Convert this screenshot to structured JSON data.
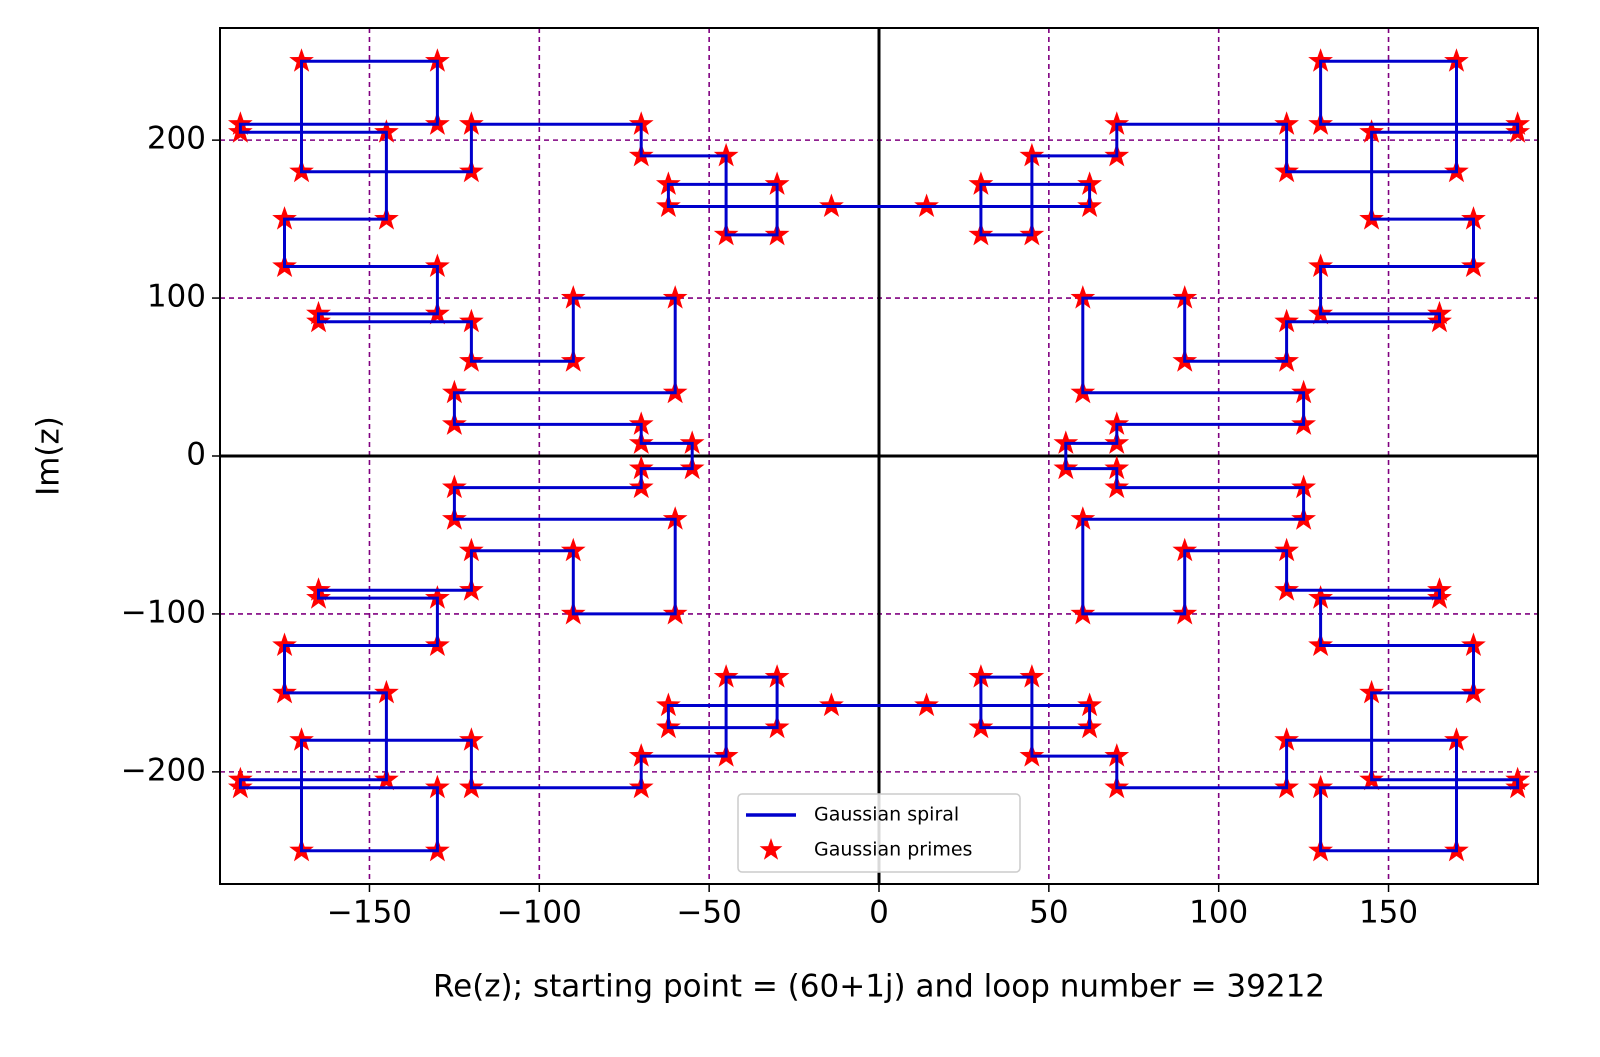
{
  "chart_data": {
    "type": "line",
    "xlabel": "Re(z); starting point = (60+1j) and loop number = 39212",
    "ylabel": "Im(z)",
    "xlim": [
      -194,
      194
    ],
    "ylim": [
      -271,
      271
    ],
    "xticks": [
      {
        "value": -150,
        "label": "−150"
      },
      {
        "value": -100,
        "label": "−100"
      },
      {
        "value": -50,
        "label": "−50"
      },
      0,
      50,
      100,
      150
    ],
    "yticks": [
      {
        "value": -200,
        "label": "−200"
      },
      {
        "value": -100,
        "label": "−100"
      },
      0,
      100,
      200
    ],
    "grid": true,
    "grid_color": "#800080",
    "legend": "lower center",
    "series": [
      {
        "name": "Gaussian spiral",
        "type": "line",
        "color": "#0000cc",
        "x": [
          0,
          62,
          62,
          30,
          30,
          45,
          45,
          70,
          70,
          120,
          120,
          170,
          170,
          130,
          130,
          188,
          188,
          145,
          145,
          175,
          175,
          130,
          130,
          165,
          165,
          120,
          120,
          90,
          90,
          60,
          60,
          125,
          125,
          70,
          70,
          55,
          55,
          55,
          70,
          70,
          125,
          125,
          60,
          60,
          90,
          90,
          120,
          120,
          165,
          165,
          130,
          130,
          175,
          175,
          145,
          145,
          188,
          188,
          130,
          130,
          170,
          170,
          120,
          120,
          70,
          70,
          45,
          45,
          30,
          30,
          62,
          62,
          0,
          -62,
          -62,
          -30,
          -30,
          -45,
          -45,
          -70,
          -70,
          -120,
          -120,
          -170,
          -170,
          -130,
          -130,
          -188,
          -188,
          -145,
          -145,
          -175,
          -175,
          -130,
          -130,
          -165,
          -165,
          -120,
          -120,
          -90,
          -90,
          -60,
          -60,
          -125,
          -125,
          -70,
          -70,
          -55,
          -55,
          -55,
          -70,
          -70,
          -125,
          -125,
          -60,
          -60,
          -90,
          -90,
          -120,
          -120,
          -165,
          -165,
          -130,
          -130,
          -175,
          -175,
          -145,
          -145,
          -188,
          -188,
          -130,
          -130,
          -170,
          -170,
          -120,
          -120,
          -70,
          -70,
          -45,
          -45,
          -30,
          -30,
          -62,
          -62,
          0
        ],
        "y": [
          158,
          158,
          172,
          172,
          140,
          140,
          190,
          190,
          210,
          210,
          180,
          180,
          250,
          250,
          210,
          210,
          205,
          205,
          150,
          150,
          120,
          120,
          90,
          90,
          85,
          85,
          60,
          60,
          100,
          100,
          40,
          40,
          20,
          20,
          8,
          8,
          0,
          -8,
          -8,
          -20,
          -20,
          -40,
          -40,
          -100,
          -100,
          -60,
          -60,
          -85,
          -85,
          -90,
          -90,
          -120,
          -120,
          -150,
          -150,
          -205,
          -205,
          -210,
          -210,
          -250,
          -250,
          -180,
          -180,
          -210,
          -210,
          -190,
          -190,
          -140,
          -140,
          -172,
          -172,
          -158,
          -158,
          -158,
          -172,
          -172,
          -140,
          -140,
          -190,
          -190,
          -210,
          -210,
          -180,
          -180,
          -250,
          -250,
          -210,
          -210,
          -205,
          -205,
          -150,
          -150,
          -120,
          -120,
          -90,
          -90,
          -85,
          -85,
          -60,
          -60,
          -100,
          -100,
          -40,
          -40,
          -20,
          -20,
          -8,
          -8,
          0,
          8,
          8,
          20,
          20,
          40,
          40,
          100,
          100,
          60,
          60,
          85,
          85,
          90,
          90,
          120,
          120,
          150,
          150,
          205,
          205,
          210,
          210,
          250,
          250,
          180,
          180,
          210,
          210,
          190,
          190,
          140,
          140,
          172,
          172,
          158,
          158
        ]
      },
      {
        "name": "Gaussian primes",
        "type": "scatter",
        "color": "#ff0000",
        "x": [
          14,
          62,
          62,
          30,
          30,
          45,
          45,
          70,
          70,
          120,
          120,
          170,
          170,
          130,
          130,
          188,
          188,
          145,
          145,
          175,
          175,
          130,
          130,
          165,
          165,
          120,
          120,
          90,
          90,
          60,
          60,
          125,
          125,
          70,
          70,
          55,
          55,
          70,
          70,
          125,
          125,
          60,
          60,
          90,
          90,
          120,
          120,
          165,
          165,
          130,
          130,
          175,
          175,
          145,
          145,
          188,
          188,
          130,
          130,
          170,
          170,
          120,
          120,
          70,
          70,
          45,
          45,
          30,
          30,
          62,
          62,
          14,
          -14,
          -62,
          -62,
          -30,
          -30,
          -45,
          -45,
          -70,
          -70,
          -120,
          -120,
          -170,
          -170,
          -130,
          -130,
          -188,
          -188,
          -145,
          -145,
          -175,
          -175,
          -130,
          -130,
          -165,
          -165,
          -120,
          -120,
          -90,
          -90,
          -60,
          -60,
          -125,
          -125,
          -70,
          -70,
          -55,
          -55,
          -70,
          -70,
          -125,
          -125,
          -60,
          -60,
          -90,
          -90,
          -120,
          -120,
          -165,
          -165,
          -130,
          -130,
          -175,
          -175,
          -145,
          -145,
          -188,
          -188,
          -130,
          -130,
          -170,
          -170,
          -120,
          -120,
          -70,
          -70,
          -45,
          -45,
          -30,
          -30,
          -62,
          -62,
          -14
        ],
        "y": [
          158,
          158,
          172,
          172,
          140,
          140,
          190,
          190,
          210,
          210,
          180,
          180,
          250,
          250,
          210,
          210,
          205,
          205,
          150,
          150,
          120,
          120,
          90,
          90,
          85,
          85,
          60,
          60,
          100,
          100,
          40,
          40,
          20,
          20,
          8,
          8,
          -8,
          -8,
          -20,
          -20,
          -40,
          -40,
          -100,
          -100,
          -60,
          -60,
          -85,
          -85,
          -90,
          -90,
          -120,
          -120,
          -150,
          -150,
          -205,
          -205,
          -210,
          -210,
          -250,
          -250,
          -180,
          -180,
          -210,
          -210,
          -190,
          -190,
          -140,
          -140,
          -172,
          -172,
          -158,
          -158,
          -158,
          -158,
          -172,
          -172,
          -140,
          -140,
          -190,
          -190,
          -210,
          -210,
          -180,
          -180,
          -250,
          -250,
          -210,
          -210,
          -205,
          -205,
          -150,
          -150,
          -120,
          -120,
          -90,
          -90,
          -85,
          -85,
          -60,
          -60,
          -100,
          -100,
          -40,
          -40,
          -20,
          -20,
          -8,
          -8,
          8,
          8,
          20,
          20,
          40,
          40,
          100,
          100,
          60,
          60,
          85,
          85,
          90,
          90,
          120,
          120,
          150,
          150,
          205,
          205,
          210,
          210,
          250,
          250,
          180,
          180,
          210,
          210,
          190,
          190,
          140,
          140,
          172,
          172,
          158,
          158
        ]
      }
    ]
  }
}
